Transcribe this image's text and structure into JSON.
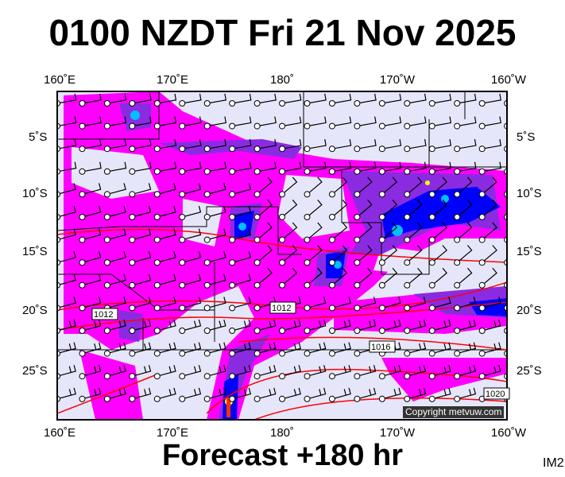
{
  "title": "0100 NZDT Fri 21 Nov 2025",
  "subtitle": "Forecast +180 hr",
  "image_code": "IM2",
  "copyright": "Copyright metvuw.com",
  "map": {
    "x_ticks": [
      "160˚E",
      "170˚E",
      "180˚",
      "170˚W",
      "160˚W"
    ],
    "y_ticks": [
      "5˚S",
      "10˚S",
      "15˚S",
      "20˚S",
      "25˚S"
    ],
    "isobar_labels": [
      "1012",
      "1012",
      "1016",
      "1020"
    ],
    "colors": {
      "background": "#e6e6fa",
      "rain_light": "#ff00ff",
      "rain_mid": "#8a2be2",
      "rain_heavy": "#0000ff",
      "rain_peak": "#00c0ff",
      "isobar": "#ff0000"
    }
  }
}
